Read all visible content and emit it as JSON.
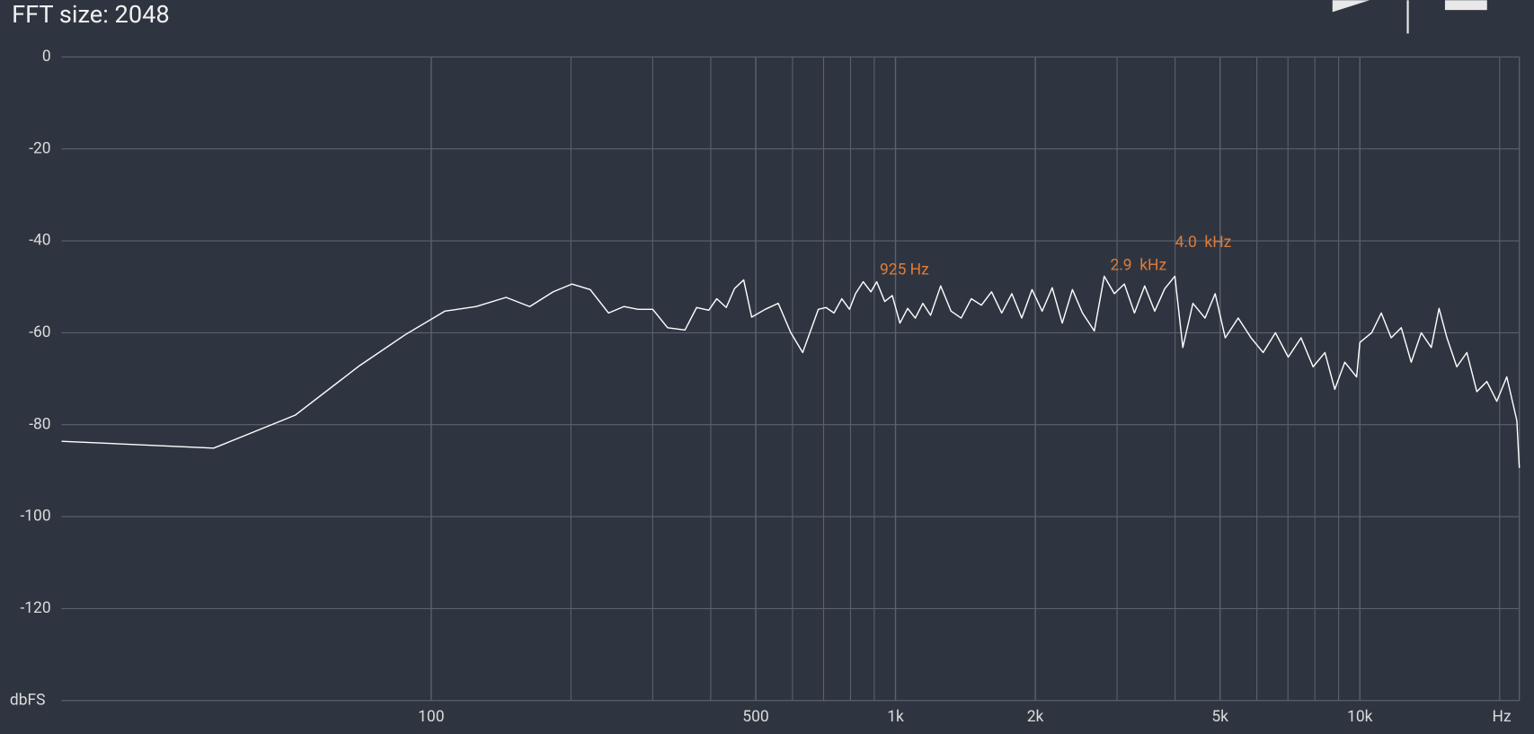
{
  "chart_data": {
    "type": "line",
    "title": "FFT size: 2048",
    "x_label": "Hz",
    "y_label": "dbFS",
    "log_x": true,
    "grid": true,
    "color": "#ffffff",
    "xlim": [
      16,
      22050
    ],
    "ylim": [
      -140,
      0
    ],
    "yticks": [
      0,
      -20,
      -40,
      -60,
      -80,
      -100,
      -120
    ],
    "xticks": [
      100,
      500,
      {
        "value": 1000,
        "label": "1k"
      },
      {
        "value": 2000,
        "label": "2k"
      },
      {
        "value": 5000,
        "label": "5k"
      },
      {
        "value": 10000,
        "label": "10k"
      }
    ],
    "x_minor_ticks": [
      200,
      300,
      400,
      600,
      700,
      800,
      900,
      3000,
      4000,
      6000,
      7000,
      8000,
      9000,
      20000
    ],
    "x": [
      16,
      34,
      51,
      70,
      88,
      107,
      125,
      145,
      163,
      183,
      201,
      220,
      241,
      260,
      279,
      300,
      323,
      352,
      373,
      396,
      412,
      432,
      450,
      471,
      490,
      524,
      559,
      595,
      631,
      656,
      682,
      708,
      737,
      766,
      796,
      820,
      852,
      885,
      911,
      948,
      984,
      1022,
      1062,
      1103,
      1145,
      1190,
      1251,
      1317,
      1385,
      1456,
      1531,
      1610,
      1693,
      1780,
      1870,
      1968,
      2069,
      2175,
      2286,
      2404,
      2527,
      2680,
      2815,
      2960,
      3110,
      3270,
      3440,
      3616,
      3800,
      3996,
      4156,
      4370,
      4640,
      4880,
      5130,
      5470,
      5830,
      6190,
      6580,
      7010,
      7470,
      7930,
      8410,
      8830,
      9280,
      9840,
      10000,
      10600,
      11120,
      11680,
      12280,
      12900,
      13560,
      14250,
      14810,
      15400,
      16170,
      17000,
      17860,
      18770,
      19720,
      20720,
      21780,
      22050
    ],
    "values": [
      -83.6,
      -85.1,
      -77.9,
      -67.2,
      -60.4,
      -55.3,
      -54.3,
      -52.3,
      -54.3,
      -51.1,
      -49.4,
      -50.6,
      -55.7,
      -54.3,
      -54.9,
      -54.9,
      -58.9,
      -59.4,
      -54.5,
      -55.1,
      -52.6,
      -54.5,
      -50.4,
      -48.5,
      -56.6,
      -54.9,
      -53.6,
      -60.0,
      -64.3,
      -59.6,
      -54.9,
      -54.5,
      -55.7,
      -52.6,
      -54.9,
      -51.5,
      -48.9,
      -51.1,
      -48.9,
      -53.2,
      -51.9,
      -57.9,
      -54.7,
      -56.8,
      -53.6,
      -56.2,
      -49.8,
      -55.3,
      -56.8,
      -52.6,
      -54.0,
      -51.1,
      -55.7,
      -51.5,
      -56.8,
      -50.6,
      -55.3,
      -50.2,
      -57.9,
      -50.6,
      -55.7,
      -59.6,
      -47.7,
      -51.5,
      -49.4,
      -55.7,
      -49.8,
      -55.3,
      -50.4,
      -47.7,
      -63.2,
      -53.6,
      -56.8,
      -51.5,
      -61.1,
      -56.8,
      -61.1,
      -64.3,
      -60.0,
      -65.3,
      -61.1,
      -67.4,
      -64.3,
      -72.3,
      -66.4,
      -69.6,
      -62.1,
      -60.0,
      -55.7,
      -61.1,
      -58.9,
      -66.4,
      -60.0,
      -63.2,
      -54.7,
      -61.1,
      -67.4,
      -64.3,
      -72.8,
      -70.6,
      -74.9,
      -69.6,
      -79.1,
      -89.4
    ],
    "annotations": [
      {
        "text": "925 Hz",
        "x": 925,
        "y": -49
      },
      {
        "text": "2.9  kHz",
        "x": 2900,
        "y": -48
      },
      {
        "text": "4.0  kHz",
        "x": 4000,
        "y": -43
      }
    ]
  }
}
